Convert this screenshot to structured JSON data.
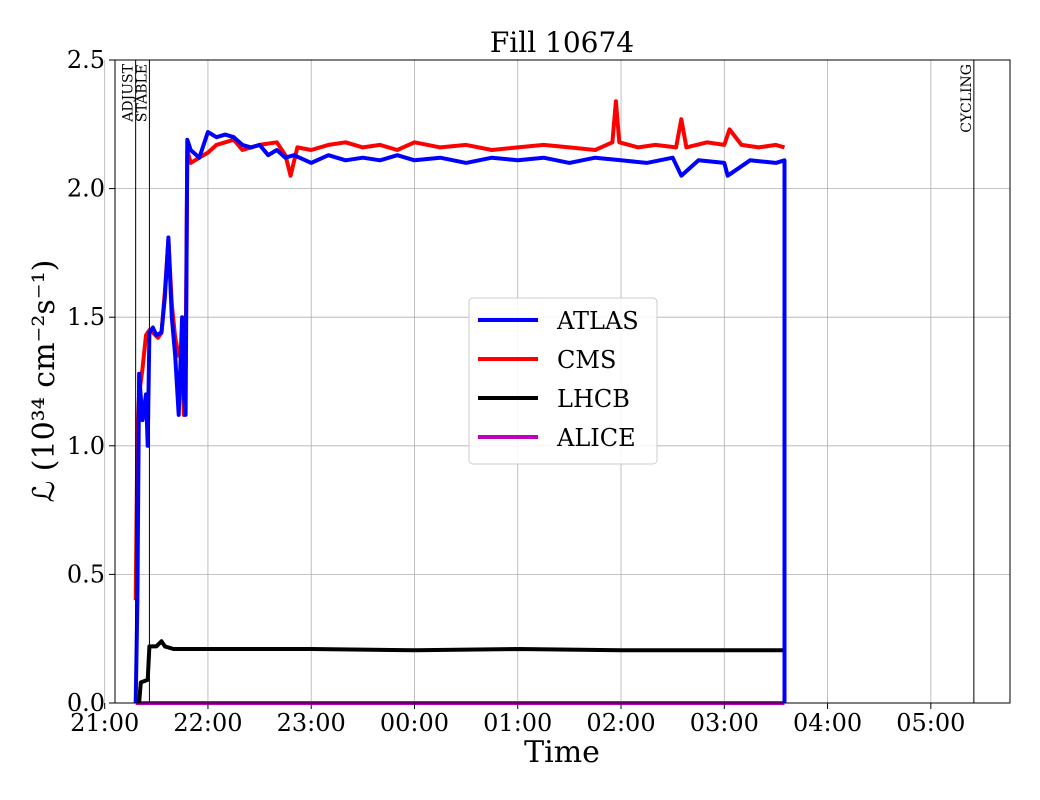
{
  "chart_data": {
    "type": "line",
    "title": "Fill 10674",
    "xlabel": "Time",
    "ylabel": "ℒ (10³⁴ cm⁻²s⁻¹)",
    "ylim": [
      0,
      2.5
    ],
    "xlim": [
      "21:06",
      "05:46"
    ],
    "grid": true,
    "legend_position": "center",
    "x_ticks": [
      "21:00",
      "22:00",
      "23:00",
      "00:00",
      "01:00",
      "02:00",
      "03:00",
      "04:00",
      "05:00"
    ],
    "y_ticks": [
      "0.0",
      "0.5",
      "1.0",
      "1.5",
      "2.0",
      "2.5"
    ],
    "markers": [
      {
        "label": "ADJUST",
        "time": "21:18"
      },
      {
        "label": "STABLE",
        "time": "21:26"
      },
      {
        "label": "CYCLING",
        "time": "05:25"
      }
    ],
    "series": [
      {
        "name": "ATLAS",
        "color": "#0000ff",
        "points": [
          [
            "21:18",
            0
          ],
          [
            "21:19",
            0.4
          ],
          [
            "21:20",
            1.28
          ],
          [
            "21:22",
            1.1
          ],
          [
            "21:24",
            1.2
          ],
          [
            "21:25",
            1.0
          ],
          [
            "21:26",
            1.44
          ],
          [
            "21:28",
            1.46
          ],
          [
            "21:30",
            1.43
          ],
          [
            "21:33",
            1.44
          ],
          [
            "21:35",
            1.58
          ],
          [
            "21:37",
            1.81
          ],
          [
            "21:39",
            1.5
          ],
          [
            "21:41",
            1.35
          ],
          [
            "21:43",
            1.12
          ],
          [
            "21:45",
            1.5
          ],
          [
            "21:46",
            1.2
          ],
          [
            "21:47",
            1.12
          ],
          [
            "21:48",
            2.19
          ],
          [
            "21:50",
            2.15
          ],
          [
            "21:55",
            2.12
          ],
          [
            "22:00",
            2.22
          ],
          [
            "22:05",
            2.2
          ],
          [
            "22:10",
            2.21
          ],
          [
            "22:15",
            2.2
          ],
          [
            "22:20",
            2.17
          ],
          [
            "22:25",
            2.16
          ],
          [
            "22:30",
            2.17
          ],
          [
            "22:35",
            2.13
          ],
          [
            "22:40",
            2.15
          ],
          [
            "22:45",
            2.12
          ],
          [
            "22:50",
            2.13
          ],
          [
            "23:00",
            2.1
          ],
          [
            "23:10",
            2.13
          ],
          [
            "23:20",
            2.11
          ],
          [
            "23:30",
            2.12
          ],
          [
            "23:40",
            2.11
          ],
          [
            "23:50",
            2.13
          ],
          [
            "00:00",
            2.11
          ],
          [
            "00:15",
            2.12
          ],
          [
            "00:30",
            2.1
          ],
          [
            "00:45",
            2.12
          ],
          [
            "01:00",
            2.11
          ],
          [
            "01:15",
            2.12
          ],
          [
            "01:30",
            2.1
          ],
          [
            "01:45",
            2.12
          ],
          [
            "02:00",
            2.11
          ],
          [
            "02:15",
            2.1
          ],
          [
            "02:30",
            2.12
          ],
          [
            "02:35",
            2.05
          ],
          [
            "02:45",
            2.11
          ],
          [
            "03:00",
            2.1
          ],
          [
            "03:02",
            2.05
          ],
          [
            "03:15",
            2.11
          ],
          [
            "03:30",
            2.1
          ],
          [
            "03:35",
            2.11
          ],
          [
            "03:35",
            0
          ]
        ]
      },
      {
        "name": "CMS",
        "color": "#ff0000",
        "points": [
          [
            "21:18",
            0.4
          ],
          [
            "21:19",
            1.05
          ],
          [
            "21:20",
            1.2
          ],
          [
            "21:22",
            1.3
          ],
          [
            "21:24",
            1.43
          ],
          [
            "21:26",
            1.45
          ],
          [
            "21:28",
            1.44
          ],
          [
            "21:31",
            1.42
          ],
          [
            "21:33",
            1.44
          ],
          [
            "21:35",
            1.6
          ],
          [
            "21:37",
            1.8
          ],
          [
            "21:39",
            1.55
          ],
          [
            "21:41",
            1.42
          ],
          [
            "21:43",
            1.35
          ],
          [
            "21:45",
            1.4
          ],
          [
            "21:46",
            1.12
          ],
          [
            "21:47",
            1.3
          ],
          [
            "21:48",
            2.15
          ],
          [
            "21:50",
            2.1
          ],
          [
            "21:55",
            2.12
          ],
          [
            "22:00",
            2.14
          ],
          [
            "22:05",
            2.17
          ],
          [
            "22:10",
            2.18
          ],
          [
            "22:15",
            2.19
          ],
          [
            "22:20",
            2.15
          ],
          [
            "22:30",
            2.17
          ],
          [
            "22:40",
            2.18
          ],
          [
            "22:45",
            2.13
          ],
          [
            "22:48",
            2.05
          ],
          [
            "22:52",
            2.16
          ],
          [
            "23:00",
            2.15
          ],
          [
            "23:10",
            2.17
          ],
          [
            "23:20",
            2.18
          ],
          [
            "23:30",
            2.16
          ],
          [
            "23:40",
            2.17
          ],
          [
            "23:50",
            2.15
          ],
          [
            "00:00",
            2.18
          ],
          [
            "00:15",
            2.16
          ],
          [
            "00:30",
            2.17
          ],
          [
            "00:45",
            2.15
          ],
          [
            "01:00",
            2.16
          ],
          [
            "01:15",
            2.17
          ],
          [
            "01:30",
            2.16
          ],
          [
            "01:45",
            2.15
          ],
          [
            "01:55",
            2.18
          ],
          [
            "01:57",
            2.34
          ],
          [
            "01:59",
            2.18
          ],
          [
            "02:10",
            2.16
          ],
          [
            "02:20",
            2.17
          ],
          [
            "02:32",
            2.16
          ],
          [
            "02:35",
            2.27
          ],
          [
            "02:38",
            2.16
          ],
          [
            "02:50",
            2.18
          ],
          [
            "03:00",
            2.17
          ],
          [
            "03:03",
            2.23
          ],
          [
            "03:10",
            2.17
          ],
          [
            "03:20",
            2.16
          ],
          [
            "03:30",
            2.17
          ],
          [
            "03:35",
            2.16
          ]
        ]
      },
      {
        "name": "LHCB",
        "color": "#000000",
        "points": [
          [
            "21:20",
            0
          ],
          [
            "21:21",
            0.08
          ],
          [
            "21:25",
            0.09
          ],
          [
            "21:26",
            0.22
          ],
          [
            "21:30",
            0.22
          ],
          [
            "21:33",
            0.24
          ],
          [
            "21:35",
            0.22
          ],
          [
            "21:40",
            0.21
          ],
          [
            "22:00",
            0.21
          ],
          [
            "23:00",
            0.21
          ],
          [
            "00:00",
            0.205
          ],
          [
            "01:00",
            0.21
          ],
          [
            "02:00",
            0.205
          ],
          [
            "03:00",
            0.205
          ],
          [
            "03:35",
            0.205
          ],
          [
            "03:35",
            0
          ]
        ]
      },
      {
        "name": "ALICE",
        "color": "#bf00bf",
        "points": [
          [
            "21:18",
            0
          ],
          [
            "03:35",
            0
          ]
        ]
      }
    ]
  }
}
